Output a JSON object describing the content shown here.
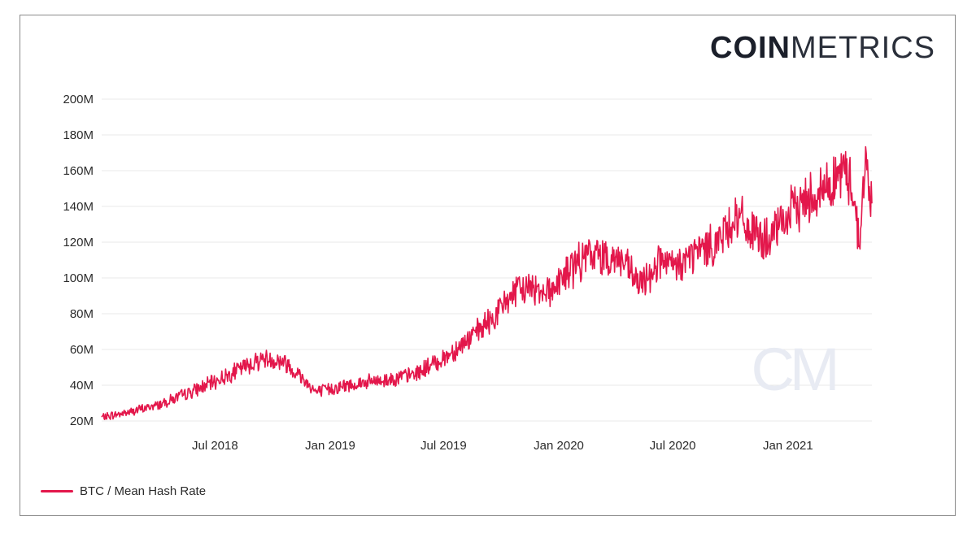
{
  "brand": {
    "logo_bold": "COIN",
    "logo_light": "METRICS",
    "watermark": "CM"
  },
  "colors": {
    "series": "#e3174b",
    "grid": "#e8e8e8",
    "text": "#2b2b2b"
  },
  "chart_data": {
    "type": "line",
    "title": "",
    "xlabel": "",
    "ylabel": "",
    "ylim": [
      20000000,
      200000000
    ],
    "y_ticks": [
      {
        "value": 20000000,
        "label": "20M"
      },
      {
        "value": 40000000,
        "label": "40M"
      },
      {
        "value": 60000000,
        "label": "60M"
      },
      {
        "value": 80000000,
        "label": "80M"
      },
      {
        "value": 100000000,
        "label": "100M"
      },
      {
        "value": 120000000,
        "label": "120M"
      },
      {
        "value": 140000000,
        "label": "140M"
      },
      {
        "value": 160000000,
        "label": "160M"
      },
      {
        "value": 180000000,
        "label": "180M"
      },
      {
        "value": 200000000,
        "label": "200M"
      }
    ],
    "x_range": [
      "2018-01-01",
      "2021-05-15"
    ],
    "x_ticks": [
      {
        "date": "2018-07-01",
        "label": "Jul 2018"
      },
      {
        "date": "2019-01-01",
        "label": "Jan 2019"
      },
      {
        "date": "2019-07-01",
        "label": "Jul 2019"
      },
      {
        "date": "2020-01-01",
        "label": "Jan 2020"
      },
      {
        "date": "2020-07-01",
        "label": "Jul 2020"
      },
      {
        "date": "2021-01-01",
        "label": "Jan 2021"
      }
    ],
    "legend_position": "bottom-left",
    "series": [
      {
        "name": "BTC / Mean Hash Rate",
        "color": "#e3174b",
        "anchors": [
          [
            "2018-01-01",
            22
          ],
          [
            "2018-02-15",
            25
          ],
          [
            "2018-04-01",
            29
          ],
          [
            "2018-05-15",
            35
          ],
          [
            "2018-07-01",
            42
          ],
          [
            "2018-08-15",
            50
          ],
          [
            "2018-09-15",
            55
          ],
          [
            "2018-10-20",
            53
          ],
          [
            "2018-11-15",
            45
          ],
          [
            "2018-12-10",
            36
          ],
          [
            "2019-01-01",
            38
          ],
          [
            "2019-02-15",
            41
          ],
          [
            "2019-04-01",
            43
          ],
          [
            "2019-05-15",
            46
          ],
          [
            "2019-07-01",
            55
          ],
          [
            "2019-08-15",
            67
          ],
          [
            "2019-09-20",
            78
          ],
          [
            "2019-10-15",
            90
          ],
          [
            "2019-11-15",
            95
          ],
          [
            "2019-12-20",
            93
          ],
          [
            "2020-01-20",
            105
          ],
          [
            "2020-02-20",
            113
          ],
          [
            "2020-03-20",
            112
          ],
          [
            "2020-04-10",
            110
          ],
          [
            "2020-05-10",
            95
          ],
          [
            "2020-06-10",
            110
          ],
          [
            "2020-07-01",
            105
          ],
          [
            "2020-08-10",
            115
          ],
          [
            "2020-09-10",
            120
          ],
          [
            "2020-10-10",
            135
          ],
          [
            "2020-11-05",
            125
          ],
          [
            "2020-12-01",
            120
          ],
          [
            "2021-01-01",
            135
          ],
          [
            "2021-02-01",
            145
          ],
          [
            "2021-03-01",
            150
          ],
          [
            "2021-04-01",
            160
          ],
          [
            "2021-04-15",
            150
          ],
          [
            "2021-04-25",
            120
          ],
          [
            "2021-05-05",
            165
          ],
          [
            "2021-05-15",
            140
          ]
        ]
      }
    ]
  }
}
